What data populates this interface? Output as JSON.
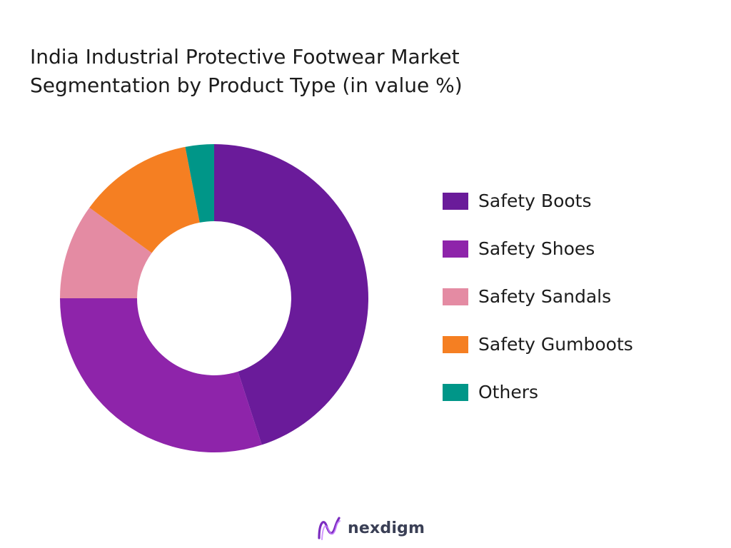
{
  "chart_data": {
    "type": "pie",
    "title_lines": [
      "India Industrial Protective Footwear Market",
      "Segmentation by Product Type (in value %)"
    ],
    "categories": [
      "Safety Boots",
      "Safety Shoes",
      "Safety Sandals",
      "Safety Gumboots",
      "Others"
    ],
    "values": [
      45,
      30,
      10,
      12,
      3
    ],
    "colors": [
      "#6a1b9a",
      "#8e24aa",
      "#e48ba3",
      "#f57f22",
      "#009688"
    ],
    "donut": true,
    "legend_position": "right",
    "start_angle_deg": 0,
    "direction": "clockwise"
  },
  "branding": {
    "name": "nexdigm",
    "logo_icon": "nexdigm-wave-logo-icon",
    "logo_colors": [
      "#7b2cbf",
      "#c77dff"
    ]
  }
}
